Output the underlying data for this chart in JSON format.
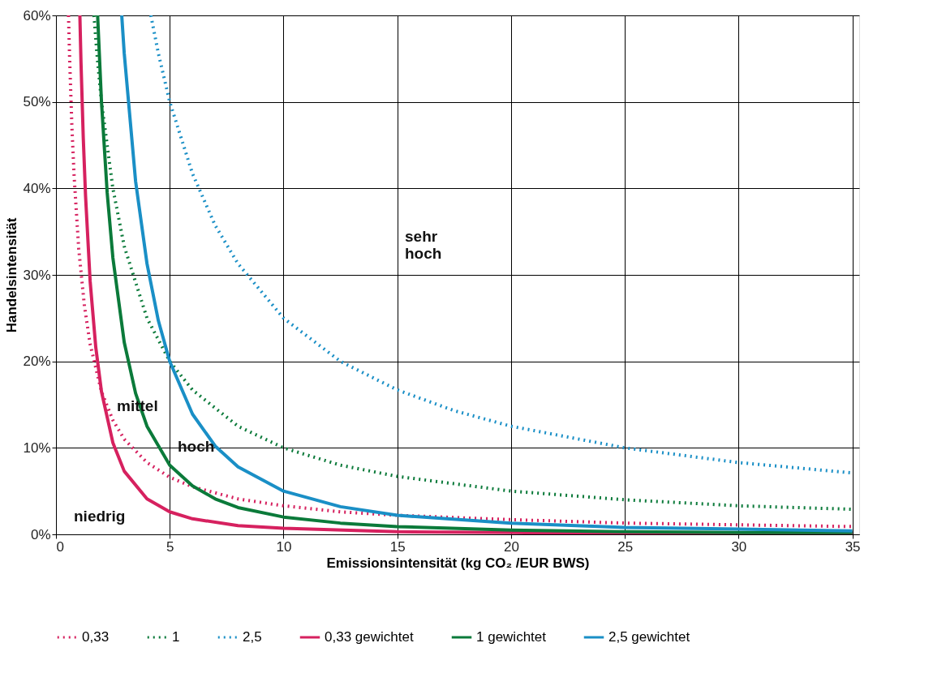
{
  "chart_data": {
    "type": "line",
    "xlabel": "Emissionsintensität (kg CO₂ /EUR BWS)",
    "ylabel": "Handelsintensität",
    "xlim": [
      0,
      35.3
    ],
    "xticks": [
      0,
      5,
      10,
      15,
      20,
      25,
      30,
      35
    ],
    "ylim": [
      0,
      60
    ],
    "yticks": [
      {
        "value": 0,
        "label": "0%"
      },
      {
        "value": 10,
        "label": "10%"
      },
      {
        "value": 20,
        "label": "20%"
      },
      {
        "value": 30,
        "label": "30%"
      },
      {
        "value": 40,
        "label": "40%"
      },
      {
        "value": 50,
        "label": "50%"
      },
      {
        "value": 60,
        "label": "60%"
      }
    ],
    "grid": true,
    "legend": "bottom",
    "marker": "none",
    "series": [
      {
        "name": "0,33",
        "color": "#d6215f",
        "line_style": "dotted",
        "x": [
          0.55,
          0.6,
          0.7,
          0.8,
          1,
          1.25,
          1.5,
          2,
          2.5,
          3,
          4,
          5,
          6,
          8,
          10,
          12.5,
          15,
          20,
          25,
          30,
          35
        ],
        "values": [
          60,
          55,
          47.1,
          41.3,
          33,
          26.4,
          22,
          16.5,
          13.2,
          11,
          8.3,
          6.6,
          5.5,
          4.1,
          3.3,
          2.6,
          2.2,
          1.7,
          1.3,
          1.1,
          0.9
        ]
      },
      {
        "name": "1",
        "color": "#0b7a3a",
        "line_style": "dotted",
        "x": [
          1.67,
          1.8,
          2,
          2.5,
          3,
          4,
          5,
          6,
          8,
          10,
          12.5,
          15,
          20,
          25,
          30,
          35
        ],
        "values": [
          60,
          55.6,
          50,
          40,
          33.3,
          25,
          20,
          16.7,
          12.5,
          10,
          8,
          6.7,
          5,
          4,
          3.3,
          2.9
        ]
      },
      {
        "name": "2,5",
        "color": "#1a8fc6",
        "line_style": "dotted",
        "x": [
          4.17,
          4.5,
          5,
          6,
          7,
          8,
          10,
          12.5,
          15,
          17.5,
          20,
          25,
          30,
          35
        ],
        "values": [
          60,
          55.6,
          50,
          41.7,
          35.7,
          31.3,
          25,
          20,
          16.7,
          14.3,
          12.5,
          10,
          8.3,
          7.1
        ]
      },
      {
        "name": "0,33 gewichtet",
        "color": "#d6215f",
        "line_style": "solid",
        "x": [
          1.05,
          1.1,
          1.2,
          1.3,
          1.5,
          1.75,
          2,
          2.5,
          3,
          4,
          5,
          6,
          8,
          10,
          15,
          20,
          25,
          30,
          35
        ],
        "values": [
          60,
          54.5,
          45.8,
          39.1,
          29.3,
          21.6,
          16.5,
          10.6,
          7.3,
          4.1,
          2.6,
          1.8,
          1,
          0.7,
          0.3,
          0.2,
          0.1,
          0.1,
          0.1
        ]
      },
      {
        "name": "1 gewichtet",
        "color": "#0b7a3a",
        "line_style": "solid",
        "x": [
          1.83,
          2,
          2.25,
          2.5,
          3,
          3.5,
          4,
          5,
          6,
          7,
          8,
          10,
          12.5,
          15,
          20,
          25,
          30,
          35
        ],
        "values": [
          60,
          50,
          39.5,
          32,
          22.2,
          16.3,
          12.5,
          8,
          5.6,
          4.1,
          3.1,
          2,
          1.3,
          0.9,
          0.5,
          0.3,
          0.2,
          0.2
        ]
      },
      {
        "name": "2,5 gewichtet",
        "color": "#1a8fc6",
        "line_style": "solid",
        "x": [
          2.89,
          3,
          3.5,
          4,
          4.5,
          5,
          6,
          7,
          8,
          10,
          12.5,
          15,
          20,
          25,
          30,
          35
        ],
        "values": [
          60,
          55.6,
          40.8,
          31.3,
          24.7,
          20,
          13.9,
          10.2,
          7.8,
          5,
          3.2,
          2.2,
          1.3,
          0.8,
          0.6,
          0.4
        ]
      }
    ],
    "annotations": [
      "niedrig",
      "mittel",
      "hoch",
      "sehr\nhoch"
    ]
  }
}
